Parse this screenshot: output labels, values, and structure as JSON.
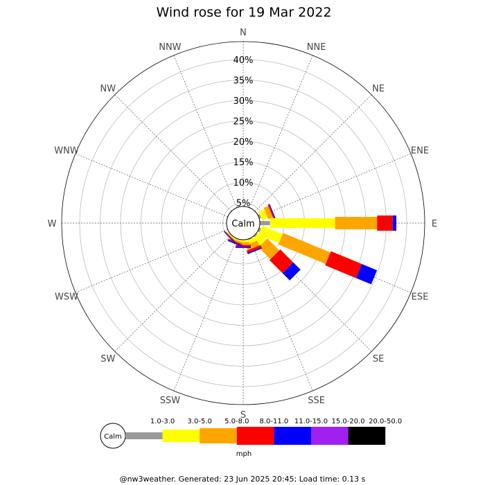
{
  "chart_data": {
    "type": "wind-rose",
    "title": "Wind rose for 19 Mar 2022",
    "center_label": "Calm",
    "radial_ticks": [
      "5%",
      "10%",
      "15%",
      "20%",
      "25%",
      "30%",
      "35%",
      "40%"
    ],
    "radial_max": 40,
    "directions": [
      "N",
      "NNE",
      "NE",
      "ENE",
      "E",
      "ESE",
      "SE",
      "SSE",
      "S",
      "SSW",
      "SW",
      "WSW",
      "W",
      "WNW",
      "NW",
      "NNW"
    ],
    "speed_bins": [
      {
        "label": "1.0-3.0",
        "color": "#999999"
      },
      {
        "label": "3.0-5.0",
        "color": "#ffff00"
      },
      {
        "label": "5.0-8.0",
        "color": "#ffa500"
      },
      {
        "label": "8.0-11.0",
        "color": "#ff0000"
      },
      {
        "label": "11.0-15.0",
        "color": "#0000ff"
      },
      {
        "label": "15.0-20.0",
        "color": "#a020f0"
      },
      {
        "label": "20.0-50.0",
        "color": "#000000"
      }
    ],
    "legend_calm": "Calm",
    "units": "mph",
    "series": [
      {
        "direction": "ENE",
        "values": [
          0.5,
          1.5,
          1.2,
          0.3,
          0.2,
          0,
          0
        ]
      },
      {
        "direction": "E",
        "values": [
          2.5,
          15.9,
          10.3,
          3.8,
          0.9,
          0,
          0
        ]
      },
      {
        "direction": "ESE",
        "values": [
          0.5,
          5.4,
          12.5,
          8.2,
          4.0,
          0,
          0
        ]
      },
      {
        "direction": "SE",
        "values": [
          0.3,
          2.5,
          4.1,
          4.5,
          2.5,
          0,
          0
        ]
      },
      {
        "direction": "SSE",
        "values": [
          0.2,
          1.0,
          1.3,
          0.6,
          0.3,
          0,
          0
        ]
      },
      {
        "direction": "S",
        "values": [
          0.1,
          0.5,
          0.7,
          0.4,
          0.3,
          0,
          0
        ]
      },
      {
        "direction": "SSW",
        "values": [
          0.1,
          0.3,
          0.4,
          0.3,
          0.3,
          0,
          0
        ]
      },
      {
        "direction": "SW",
        "values": [
          0.1,
          0.2,
          0.2,
          0.1,
          0.2,
          0,
          0
        ]
      }
    ]
  },
  "footer": "@nw3weather. Generated: 23 Jun 2025 20:45; Load time: 0.13 s"
}
